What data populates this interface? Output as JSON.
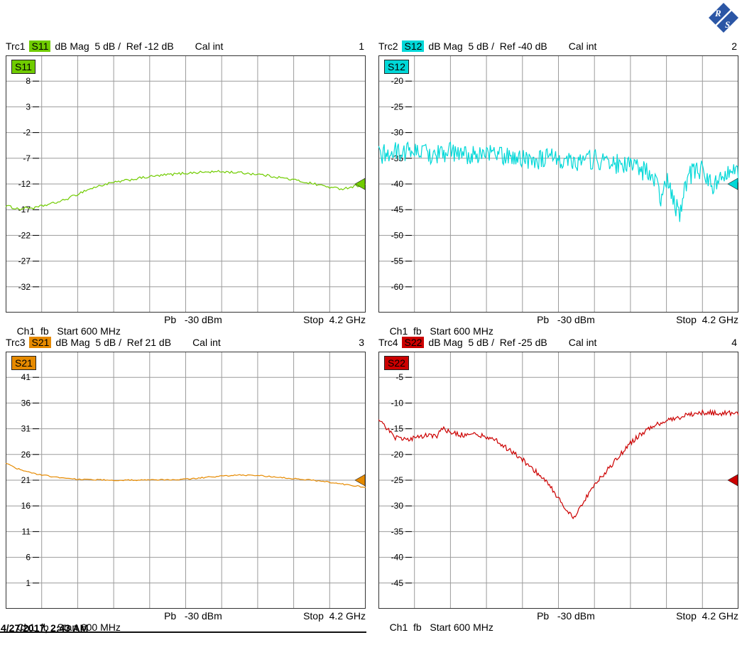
{
  "logo": {
    "r": "R",
    "s": "S",
    "color": "#2b56a5"
  },
  "timestamp": "4/27/2017, 2:43 AM",
  "panels": [
    {
      "label": "S11",
      "header": {
        "trc": "Trc1",
        "s": "S11",
        "settings": "dB Mag  5 dB /  Ref -12 dB",
        "cal": "Cal int",
        "num": "1"
      },
      "footer": {
        "left": "Ch1  fb   Start 600 MHz",
        "mid": "Pb   -30 dBm",
        "right": "Stop  4.2 GHz"
      }
    },
    {
      "label": "S12",
      "header": {
        "trc": "Trc2",
        "s": "S12",
        "settings": "dB Mag  5 dB /  Ref -40 dB",
        "cal": "Cal int",
        "num": "2"
      },
      "footer": {
        "left": "Ch1  fb   Start 600 MHz",
        "mid": "Pb   -30 dBm",
        "right": "Stop  4.2 GHz"
      }
    },
    {
      "label": "S21",
      "header": {
        "trc": "Trc3",
        "s": "S21",
        "settings": "dB Mag  5 dB /  Ref 21 dB",
        "cal": "Cal int",
        "num": "3"
      },
      "footer": {
        "left": "Ch1  fb   Start 600 MHz",
        "mid": "Pb   -30 dBm",
        "right": "Stop  4.2 GHz"
      }
    },
    {
      "label": "S22",
      "header": {
        "trc": "Trc4",
        "s": "S22",
        "settings": "dB Mag  5 dB /  Ref -25 dB",
        "cal": "Cal int",
        "num": "4"
      },
      "footer": {
        "left": "Ch1  fb   Start 600 MHz",
        "mid": "Pb   -30 dBm",
        "right": "Stop  4.2 GHz"
      }
    }
  ],
  "chart_data": [
    {
      "type": "line",
      "name": "S11",
      "title": "Trc1 S11 dB Mag 5 dB / Ref -12 dB Cal int",
      "color": "#70cc00",
      "ref_level_db": -12,
      "scale_db_per_div": 5,
      "ylim": [
        13,
        -37
      ],
      "y_ticks": [
        8,
        3,
        -2,
        -7,
        -12,
        -17,
        -22,
        -27,
        -32
      ],
      "x_start": "600 MHz",
      "x_stop": "4.2 GHz",
      "power": "-30 dBm",
      "grid_divisions_x": 10,
      "samples": 220,
      "noise_db": 0.25,
      "series": [
        [
          0,
          -16.2
        ],
        [
          0.02,
          -16.6
        ],
        [
          0.04,
          -16.9
        ],
        [
          0.06,
          -16.6
        ],
        [
          0.08,
          -16.7
        ],
        [
          0.1,
          -16.3
        ],
        [
          0.13,
          -15.8
        ],
        [
          0.16,
          -15.2
        ],
        [
          0.19,
          -14.3
        ],
        [
          0.22,
          -13.3
        ],
        [
          0.25,
          -12.6
        ],
        [
          0.28,
          -12.0
        ],
        [
          0.32,
          -11.5
        ],
        [
          0.36,
          -11.0
        ],
        [
          0.4,
          -10.6
        ],
        [
          0.45,
          -10.2
        ],
        [
          0.5,
          -9.9
        ],
        [
          0.55,
          -9.7
        ],
        [
          0.6,
          -9.6
        ],
        [
          0.65,
          -9.8
        ],
        [
          0.7,
          -10.1
        ],
        [
          0.75,
          -10.6
        ],
        [
          0.8,
          -11.2
        ],
        [
          0.85,
          -11.9
        ],
        [
          0.88,
          -12.3
        ],
        [
          0.91,
          -12.8
        ],
        [
          0.94,
          -12.9
        ],
        [
          0.97,
          -12.4
        ],
        [
          1.0,
          -12.1
        ]
      ]
    },
    {
      "type": "line",
      "name": "S12",
      "title": "Trc2 S12 dB Mag 5 dB / Ref -40 dB Cal int",
      "color": "#00d8d8",
      "ref_level_db": -40,
      "scale_db_per_div": 5,
      "ylim": [
        -15,
        -65
      ],
      "y_ticks": [
        -20,
        -25,
        -30,
        -35,
        -40,
        -45,
        -50,
        -55,
        -60
      ],
      "x_start": "600 MHz",
      "x_stop": "4.2 GHz",
      "power": "-30 dBm",
      "grid_divisions_x": 10,
      "samples": 380,
      "noise_db": 2.0,
      "series": [
        [
          0,
          -34.5
        ],
        [
          0.05,
          -33.8
        ],
        [
          0.1,
          -33.5
        ],
        [
          0.15,
          -34.2
        ],
        [
          0.2,
          -33.8
        ],
        [
          0.25,
          -34.5
        ],
        [
          0.3,
          -34.0
        ],
        [
          0.35,
          -34.5
        ],
        [
          0.4,
          -35.0
        ],
        [
          0.45,
          -35.2
        ],
        [
          0.5,
          -35.0
        ],
        [
          0.55,
          -35.5
        ],
        [
          0.6,
          -35.2
        ],
        [
          0.65,
          -36.0
        ],
        [
          0.7,
          -36.5
        ],
        [
          0.74,
          -37.5
        ],
        [
          0.77,
          -40.0
        ],
        [
          0.79,
          -43.5
        ],
        [
          0.8,
          -39.0
        ],
        [
          0.82,
          -43.5
        ],
        [
          0.84,
          -46.0
        ],
        [
          0.85,
          -40.0
        ],
        [
          0.87,
          -38.0
        ],
        [
          0.9,
          -37.0
        ],
        [
          0.93,
          -41.0
        ],
        [
          0.95,
          -38.0
        ],
        [
          0.97,
          -37.0
        ],
        [
          1.0,
          -38.5
        ]
      ]
    },
    {
      "type": "line",
      "name": "S21",
      "title": "Trc3 S21 dB Mag 5 dB / Ref 21 dB Cal int",
      "color": "#e68a00",
      "ref_level_db": 21,
      "scale_db_per_div": 5,
      "ylim": [
        46,
        -4
      ],
      "y_ticks": [
        41,
        36,
        31,
        26,
        21,
        16,
        11,
        6,
        1
      ],
      "x_start": "600 MHz",
      "x_stop": "4.2 GHz",
      "power": "-30 dBm",
      "grid_divisions_x": 10,
      "samples": 220,
      "noise_db": 0.12,
      "series": [
        [
          0,
          24.3
        ],
        [
          0.03,
          23.3
        ],
        [
          0.06,
          22.6
        ],
        [
          0.1,
          22.0
        ],
        [
          0.15,
          21.5
        ],
        [
          0.2,
          21.2
        ],
        [
          0.3,
          21.0
        ],
        [
          0.4,
          21.0
        ],
        [
          0.5,
          21.2
        ],
        [
          0.55,
          21.5
        ],
        [
          0.6,
          21.8
        ],
        [
          0.65,
          22.0
        ],
        [
          0.7,
          21.9
        ],
        [
          0.75,
          21.6
        ],
        [
          0.8,
          21.3
        ],
        [
          0.85,
          21.0
        ],
        [
          0.9,
          20.6
        ],
        [
          0.95,
          20.1
        ],
        [
          1.0,
          19.6
        ]
      ]
    },
    {
      "type": "line",
      "name": "S22",
      "title": "Trc4 S22 dB Mag 5 dB / Ref -25 dB Cal int",
      "color": "#cc0000",
      "ref_level_db": -25,
      "scale_db_per_div": 5,
      "ylim": [
        0,
        -50
      ],
      "y_ticks": [
        -5,
        -10,
        -15,
        -20,
        -25,
        -30,
        -35,
        -40,
        -45
      ],
      "x_start": "600 MHz",
      "x_stop": "4.2 GHz",
      "power": "-30 dBm",
      "grid_divisions_x": 10,
      "samples": 320,
      "noise_db": 0.5,
      "series": [
        [
          0,
          -12.8
        ],
        [
          0.02,
          -14.5
        ],
        [
          0.04,
          -16.5
        ],
        [
          0.07,
          -17.2
        ],
        [
          0.1,
          -16.8
        ],
        [
          0.13,
          -16.2
        ],
        [
          0.16,
          -16.5
        ],
        [
          0.18,
          -14.8
        ],
        [
          0.2,
          -15.8
        ],
        [
          0.23,
          -16.2
        ],
        [
          0.26,
          -16.0
        ],
        [
          0.3,
          -16.5
        ],
        [
          0.33,
          -17.5
        ],
        [
          0.36,
          -19.0
        ],
        [
          0.4,
          -21.0
        ],
        [
          0.43,
          -23.0
        ],
        [
          0.45,
          -24.0
        ],
        [
          0.47,
          -25.5
        ],
        [
          0.49,
          -27.5
        ],
        [
          0.51,
          -29.5
        ],
        [
          0.53,
          -31.5
        ],
        [
          0.545,
          -32.5
        ],
        [
          0.56,
          -30.5
        ],
        [
          0.58,
          -28.0
        ],
        [
          0.6,
          -26.0
        ],
        [
          0.63,
          -23.5
        ],
        [
          0.66,
          -21.0
        ],
        [
          0.69,
          -18.5
        ],
        [
          0.72,
          -16.5
        ],
        [
          0.75,
          -15.0
        ],
        [
          0.78,
          -14.0
        ],
        [
          0.82,
          -13.0
        ],
        [
          0.86,
          -12.3
        ],
        [
          0.9,
          -11.8
        ],
        [
          0.94,
          -12.0
        ],
        [
          0.97,
          -11.9
        ],
        [
          1.0,
          -12.3
        ]
      ]
    }
  ]
}
